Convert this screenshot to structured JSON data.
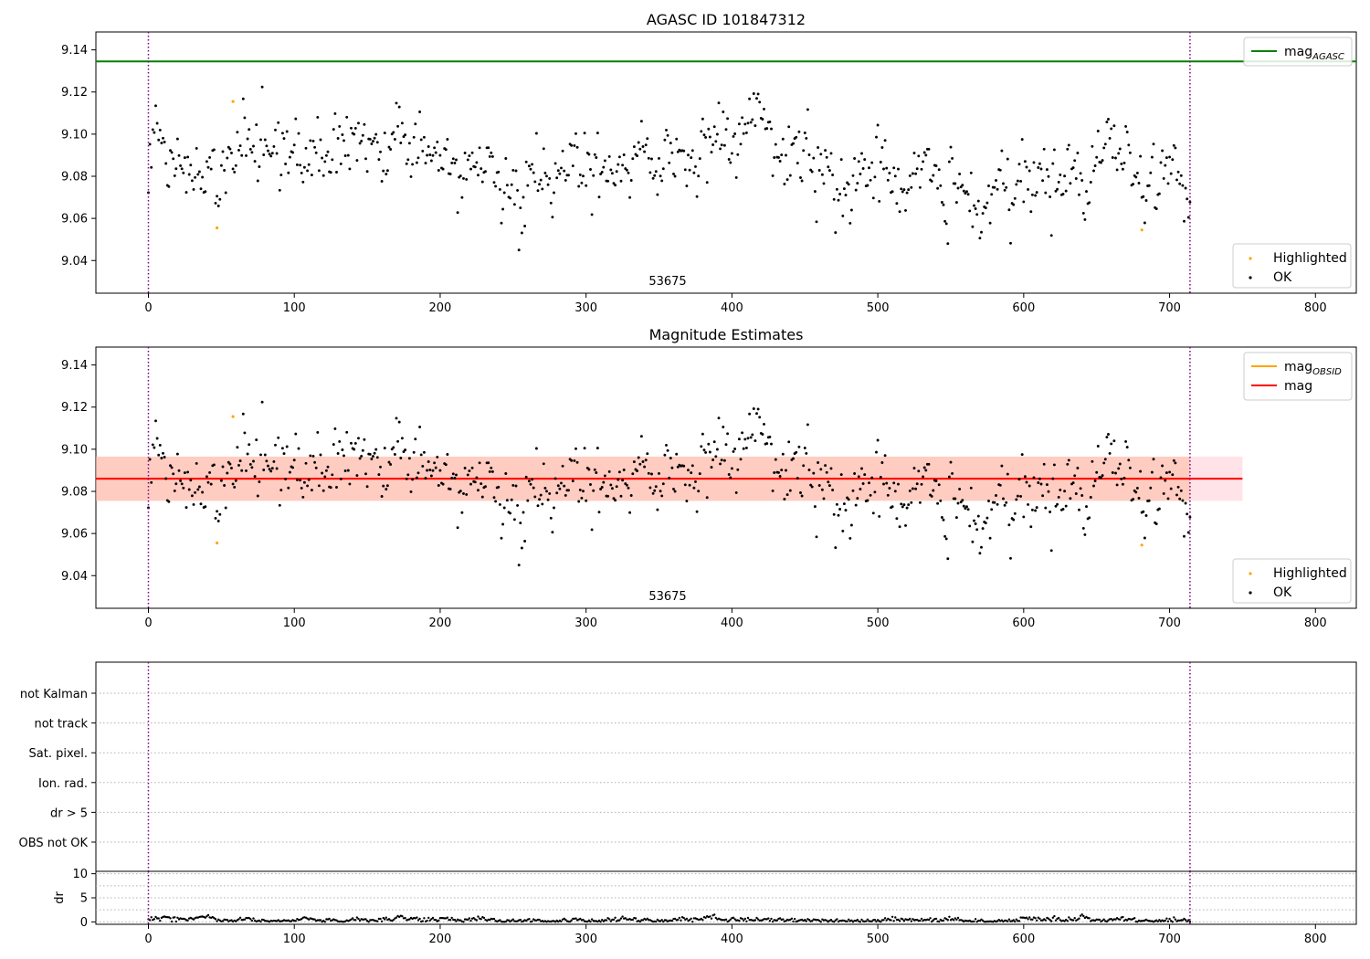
{
  "chart_data": [
    {
      "type": "scatter",
      "title": "AGASC ID 101847312",
      "xlim": [
        -36,
        828
      ],
      "ylim": [
        9.0245,
        9.1485
      ],
      "x_ticks": [
        "0",
        "100",
        "200",
        "300",
        "400",
        "500",
        "600",
        "700",
        "800"
      ],
      "y_ticks": [
        "9.04",
        "9.06",
        "9.08",
        "9.10",
        "9.12",
        "9.14"
      ],
      "annotation": "53675",
      "annotation_x": 356,
      "vlines_x": [
        0,
        714
      ],
      "hlines": [
        {
          "name": "mag",
          "subscript": "AGASC",
          "y": 9.1345,
          "color": "#008000",
          "x_range": [
            -36,
            828
          ]
        }
      ],
      "legend_top": [
        {
          "label": "mag",
          "subscript": "AGASC",
          "color": "#008000",
          "kind": "line"
        }
      ],
      "legend_bottom": [
        {
          "label": "Highlighted",
          "color": "#ffa500",
          "kind": "point"
        },
        {
          "label": "OK",
          "color": "#000000",
          "kind": "point"
        }
      ],
      "series": [
        {
          "name": "OK",
          "color": "#000000",
          "generated": {
            "n": 715,
            "x_start": 0,
            "x_end": 714,
            "segments": [
              [
                0,
                9.086
              ],
              [
                150,
                9.094
              ],
              [
                200,
                9.087
              ],
              [
                250,
                9.084
              ],
              [
                300,
                9.081
              ],
              [
                340,
                9.09
              ],
              [
                370,
                9.085
              ],
              [
                420,
                9.097
              ],
              [
                460,
                9.086
              ],
              [
                500,
                9.082
              ],
              [
                540,
                9.082
              ],
              [
                570,
                9.072
              ],
              [
                600,
                9.076
              ],
              [
                640,
                9.08
              ],
              [
                680,
                9.08
              ],
              [
                714,
                9.08
              ]
            ],
            "spread": 0.0125
          }
        },
        {
          "name": "Highlighted",
          "color": "#ffa500",
          "x": [
            47,
            58,
            681
          ],
          "y": [
            9.0555,
            9.1155,
            9.0545
          ]
        }
      ]
    },
    {
      "type": "scatter",
      "title": "Magnitude Estimates",
      "xlim": [
        -36,
        828
      ],
      "ylim": [
        9.0245,
        9.1485
      ],
      "x_ticks": [
        "0",
        "100",
        "200",
        "300",
        "400",
        "500",
        "600",
        "700",
        "800"
      ],
      "y_ticks": [
        "9.04",
        "9.06",
        "9.08",
        "9.10",
        "9.12",
        "9.14"
      ],
      "annotation": "53675",
      "annotation_x": 356,
      "vlines_x": [
        0,
        714
      ],
      "hlines": [
        {
          "name": "mag",
          "subscript": "OBSID",
          "y": 9.086,
          "color": "#ffa500",
          "x_range": [
            -36,
            714
          ]
        },
        {
          "name": "mag",
          "y": 9.086,
          "color": "#ff0000",
          "x_range": [
            -36,
            750
          ]
        }
      ],
      "bands": [
        {
          "y": [
            9.0755,
            9.0965
          ],
          "x": [
            -36,
            750
          ],
          "color": "#ffc0cb",
          "opacity": 0.45
        },
        {
          "y": [
            9.0755,
            9.0965
          ],
          "x": [
            -36,
            714
          ],
          "color": "#ffa07a",
          "opacity": 0.35
        }
      ],
      "legend_top": [
        {
          "label": "mag",
          "subscript": "OBSID",
          "color": "#ffa500",
          "kind": "line"
        },
        {
          "label": "mag",
          "subscript": "",
          "color": "#ff0000",
          "kind": "line"
        }
      ],
      "legend_bottom": [
        {
          "label": "Highlighted",
          "color": "#ffa500",
          "kind": "point"
        },
        {
          "label": "OK",
          "color": "#000000",
          "kind": "point"
        }
      ],
      "series": [
        {
          "name": "OK",
          "color": "#000000",
          "same_as": 0
        },
        {
          "name": "Highlighted",
          "color": "#ffa500",
          "x": [
            47,
            58,
            681
          ],
          "y": [
            9.0555,
            9.1155,
            9.0545
          ]
        }
      ]
    },
    {
      "type": "category-flags",
      "categories": [
        "not Kalman",
        "not track",
        "Sat. pixel.",
        "Ion. rad.",
        "dr > 5",
        "OBS not OK"
      ],
      "vlines_x": [
        0,
        714
      ],
      "xlim": [
        -36,
        828
      ],
      "grid": "dotted"
    },
    {
      "type": "scatter",
      "ylabel": "dr",
      "xlim": [
        -36,
        828
      ],
      "ylim": [
        -0.5,
        10.5
      ],
      "x_ticks": [
        "0",
        "100",
        "200",
        "300",
        "400",
        "500",
        "600",
        "700",
        "800"
      ],
      "y_ticks": [
        "0",
        "5",
        "10"
      ],
      "vlines_x": [
        0,
        714
      ],
      "series": [
        {
          "name": "dr",
          "color": "#000000",
          "generated": {
            "n": 715,
            "x_start": 0,
            "x_end": 714,
            "segments": [
              [
                0,
                0.35
              ],
              [
                40,
                0.9
              ],
              [
                55,
                0.35
              ],
              [
                714,
                0.4
              ]
            ],
            "spread": 0.35
          }
        }
      ]
    }
  ]
}
